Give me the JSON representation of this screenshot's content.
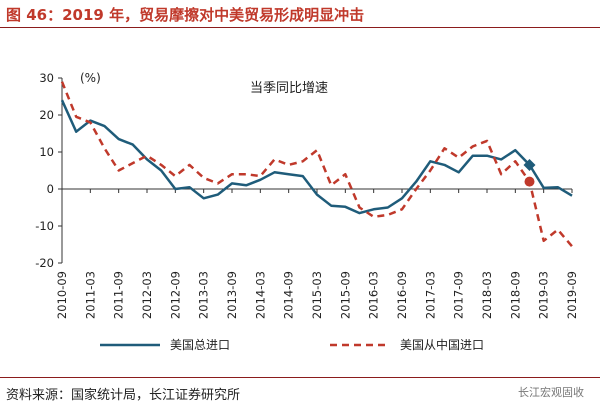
{
  "header": {
    "title": "图 46：2019 年，贸易摩擦对中美贸易形成明显冲击"
  },
  "footer": {
    "source": "资料来源：国家统计局，长江证券研究所",
    "brand": "长江宏观固收"
  },
  "colors": {
    "series1": "#1f5c7a",
    "series2": "#c0392b"
  },
  "chart_data": {
    "type": "line",
    "title": "当季同比增速",
    "ylabel": "(%)",
    "ylim": [
      -20,
      30
    ],
    "yticks": [
      30,
      20,
      10,
      0,
      -10,
      -20
    ],
    "grid": false,
    "legend": "bottom",
    "xticks": [
      "2010-09",
      "2011-03",
      "2011-09",
      "2012-03",
      "2012-09",
      "2013-03",
      "2013-09",
      "2014-03",
      "2014-09",
      "2015-03",
      "2015-09",
      "2016-03",
      "2016-09",
      "2017-03",
      "2017-09",
      "2018-03",
      "2018-09",
      "2019-03",
      "2019-09"
    ],
    "x": [
      "2010-09",
      "2010-12",
      "2011-03",
      "2011-06",
      "2011-09",
      "2011-12",
      "2012-03",
      "2012-06",
      "2012-09",
      "2012-12",
      "2013-03",
      "2013-06",
      "2013-09",
      "2013-12",
      "2014-03",
      "2014-06",
      "2014-09",
      "2014-12",
      "2015-03",
      "2015-06",
      "2015-09",
      "2015-12",
      "2016-03",
      "2016-06",
      "2016-09",
      "2016-12",
      "2017-03",
      "2017-06",
      "2017-09",
      "2017-12",
      "2018-03",
      "2018-06",
      "2018-09",
      "2018-12",
      "2019-03",
      "2019-06",
      "2019-09"
    ],
    "series": [
      {
        "name": "美国总进口",
        "style": "solid",
        "values": [
          24,
          15.5,
          18.5,
          17,
          13.5,
          12,
          8,
          5,
          0,
          0.5,
          -2.5,
          -1.5,
          1.5,
          1,
          2.5,
          4.5,
          4,
          3.5,
          -1.5,
          -4.5,
          -4.8,
          -6.5,
          -5.5,
          -5,
          -2.5,
          2,
          7.5,
          6.5,
          4.5,
          9,
          9,
          8,
          10.5,
          6.5,
          0.3,
          0.5,
          -1.8
        ]
      },
      {
        "name": "美国从中国进口",
        "style": "dashed",
        "values": [
          29,
          19.5,
          18,
          11,
          5,
          7,
          9,
          6.5,
          3.5,
          6.5,
          3,
          1.5,
          4,
          4,
          3.5,
          8,
          6.5,
          7.5,
          10.5,
          1,
          4,
          -5,
          -7.5,
          -7,
          -5.5,
          0,
          5,
          11,
          8.5,
          11.5,
          13,
          4,
          7.5,
          2,
          -14,
          -11,
          -15.5
        ]
      }
    ]
  }
}
